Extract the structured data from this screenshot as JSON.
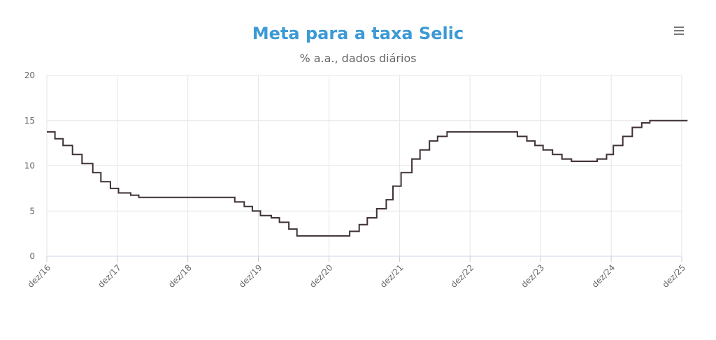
{
  "header": {
    "title": "Meta para a taxa Selic",
    "subtitle": "% a.a., dados diários"
  },
  "icons": {
    "menu": "hamburger-menu-icon"
  },
  "colors": {
    "title": "#3c9ad6",
    "line": "#3f3136",
    "grid": "#e6e6e6"
  },
  "chart_data": {
    "type": "line",
    "step": true,
    "title": "Meta para a taxa Selic",
    "subtitle": "% a.a., dados diários",
    "xlabel": "",
    "ylabel": "",
    "x_range": [
      "2016-12",
      "2025-12"
    ],
    "ylim": [
      0,
      20
    ],
    "yticks": [
      0,
      5,
      10,
      15,
      20
    ],
    "ytick_labels": [
      "0",
      "5",
      "10",
      "15",
      "20"
    ],
    "xticks": [
      "2016-12",
      "2017-12",
      "2018-12",
      "2019-12",
      "2020-12",
      "2021-12",
      "2022-12",
      "2023-12",
      "2024-12",
      "2025-12"
    ],
    "xtick_labels": [
      "dez/16",
      "dez/17",
      "dez/18",
      "dez/19",
      "dez/20",
      "dez/21",
      "dez/22",
      "dez/23",
      "dez/24",
      "dez/25"
    ],
    "grid": true,
    "legend": "none",
    "series": [
      {
        "x": [
          "2016-12-01",
          "2017-01-12",
          "2017-02-23",
          "2017-04-13",
          "2017-06-01",
          "2017-07-27",
          "2017-09-07",
          "2017-10-26",
          "2017-12-07",
          "2018-02-08",
          "2018-03-22",
          "2019-08-01",
          "2019-09-19",
          "2019-10-31",
          "2019-12-12",
          "2020-02-06",
          "2020-03-19",
          "2020-05-07",
          "2020-06-18",
          "2021-03-18",
          "2021-05-06",
          "2021-06-17",
          "2021-08-05",
          "2021-09-23",
          "2021-10-28",
          "2021-12-09",
          "2022-02-03",
          "2022-03-17",
          "2022-05-05",
          "2022-06-16",
          "2022-08-04",
          "2023-08-03",
          "2023-09-21",
          "2023-11-02",
          "2023-12-14",
          "2024-02-01",
          "2024-03-21",
          "2024-05-09",
          "2024-09-19",
          "2024-11-07",
          "2024-12-12",
          "2025-01-30",
          "2025-03-20",
          "2025-05-08",
          "2025-06-19",
          "2025-12-31"
        ],
        "y": [
          13.75,
          13.0,
          12.25,
          11.25,
          10.25,
          9.25,
          8.25,
          7.5,
          7.0,
          6.75,
          6.5,
          6.0,
          5.5,
          5.0,
          4.5,
          4.25,
          3.75,
          3.0,
          2.25,
          2.75,
          3.5,
          4.25,
          5.25,
          6.25,
          7.75,
          9.25,
          10.75,
          11.75,
          12.75,
          13.25,
          13.75,
          13.25,
          12.75,
          12.25,
          11.75,
          11.25,
          10.75,
          10.5,
          10.75,
          11.25,
          12.25,
          13.25,
          14.25,
          14.75,
          15.0,
          15.0
        ]
      }
    ]
  }
}
